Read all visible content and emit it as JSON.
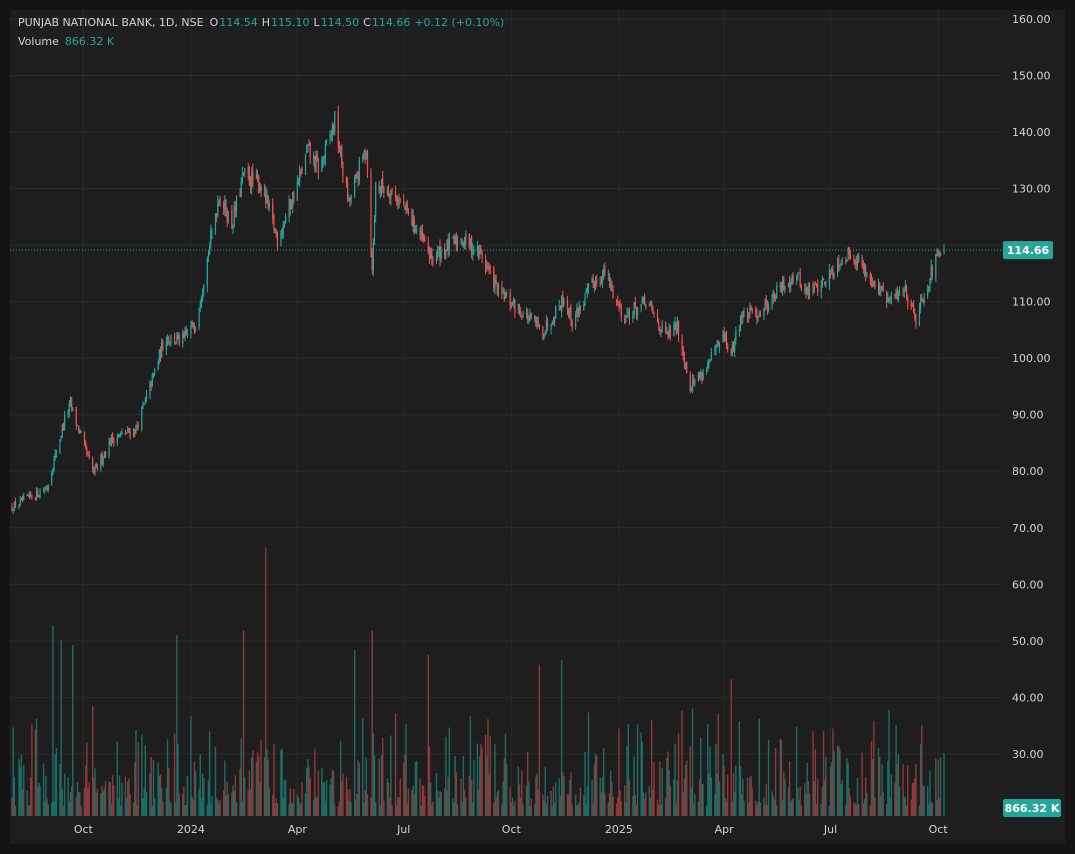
{
  "header": {
    "symbol": "PUNJAB NATIONAL BANK, 1D, NSE",
    "o_label": "O",
    "o_value": "114.54",
    "h_label": "H",
    "h_value": "115.10",
    "l_label": "L",
    "l_value": "114.50",
    "c_label": "C",
    "c_value": "114.66",
    "change": "+0.12 (+0.10%)",
    "volume_label": "Volume",
    "volume_value": "866.32 K"
  },
  "colors": {
    "background": "#141414",
    "pane": "#1e1e1e",
    "grid": "#2a2a2a",
    "up": "#26a69a",
    "down": "#ef5350",
    "volume_up": "#1d6d66",
    "volume_down": "#8c3a3a",
    "axis_text": "#d1d4dc",
    "price_label_bg": "#26a69a"
  },
  "chart_data": {
    "type": "candlestick",
    "title": "PUNJAB NATIONAL BANK, 1D, NSE",
    "ylim": [
      0,
      162
    ],
    "y_ticks": [
      "160.00",
      "150.00",
      "140.00",
      "130.00",
      "120.00",
      "110.00",
      "100.00",
      "90.00",
      "80.00",
      "70.00",
      "60.00",
      "50.00",
      "40.00",
      "30.00"
    ],
    "x_ticks": [
      {
        "label": "Oct",
        "date": "2023-10-01"
      },
      {
        "label": "2024",
        "date": "2024-01-01"
      },
      {
        "label": "Apr",
        "date": "2024-04-01"
      },
      {
        "label": "Jul",
        "date": "2024-07-01"
      },
      {
        "label": "Oct",
        "date": "2024-10-01"
      },
      {
        "label": "2025",
        "date": "2025-01-01"
      },
      {
        "label": "Apr",
        "date": "2025-04-01"
      },
      {
        "label": "Jul",
        "date": "2025-07-01"
      },
      {
        "label": "Oct",
        "date": "2025-10-01"
      }
    ],
    "x_range": [
      "2023-08-01",
      "2025-10-06"
    ],
    "last_price": 114.66,
    "last_price_label": "114.66",
    "last_volume_label": "866.32 K",
    "price_path": [
      [
        "2023-08-01",
        62
      ],
      [
        "2023-08-31",
        66
      ],
      [
        "2023-09-15",
        80
      ],
      [
        "2023-09-20",
        83
      ],
      [
        "2023-10-05",
        72
      ],
      [
        "2023-10-10",
        69
      ],
      [
        "2023-10-25",
        76
      ],
      [
        "2023-11-15",
        78
      ],
      [
        "2023-11-25",
        85
      ],
      [
        "2023-12-10",
        97
      ],
      [
        "2023-12-25",
        96
      ],
      [
        "2024-01-05",
        100
      ],
      [
        "2024-01-25",
        126
      ],
      [
        "2024-02-05",
        120
      ],
      [
        "2024-02-15",
        130
      ],
      [
        "2024-03-01",
        128
      ],
      [
        "2024-03-15",
        117
      ],
      [
        "2024-04-01",
        128
      ],
      [
        "2024-04-10",
        135
      ],
      [
        "2024-04-20",
        131
      ],
      [
        "2024-05-03",
        141
      ],
      [
        "2024-05-15",
        124
      ],
      [
        "2024-05-30",
        136
      ],
      [
        "2024-06-04",
        110
      ],
      [
        "2024-06-07",
        128
      ],
      [
        "2024-06-20",
        127
      ],
      [
        "2024-07-05",
        122
      ],
      [
        "2024-07-25",
        113
      ],
      [
        "2024-08-05",
        115
      ],
      [
        "2024-08-20",
        117
      ],
      [
        "2024-09-05",
        114
      ],
      [
        "2024-09-20",
        106
      ],
      [
        "2024-10-10",
        102
      ],
      [
        "2024-10-28",
        98
      ],
      [
        "2024-11-15",
        105
      ],
      [
        "2024-11-22",
        100
      ],
      [
        "2024-12-10",
        108
      ],
      [
        "2024-12-20",
        110
      ],
      [
        "2025-01-05",
        101
      ],
      [
        "2025-01-25",
        104
      ],
      [
        "2025-02-10",
        97
      ],
      [
        "2025-02-20",
        99
      ],
      [
        "2025-03-03",
        87
      ],
      [
        "2025-03-15",
        90
      ],
      [
        "2025-04-01",
        97
      ],
      [
        "2025-04-07",
        93
      ],
      [
        "2025-04-15",
        101
      ],
      [
        "2025-05-01",
        102
      ],
      [
        "2025-05-20",
        107
      ],
      [
        "2025-06-01",
        110
      ],
      [
        "2025-06-10",
        106
      ],
      [
        "2025-06-25",
        108
      ],
      [
        "2025-07-10",
        113
      ],
      [
        "2025-07-20",
        114
      ],
      [
        "2025-08-01",
        110
      ],
      [
        "2025-08-20",
        104
      ],
      [
        "2025-09-02",
        107
      ],
      [
        "2025-09-12",
        101
      ],
      [
        "2025-09-25",
        110
      ],
      [
        "2025-10-03",
        114.66
      ]
    ],
    "volume_spikes": [
      {
        "date": "2023-09-05",
        "value": 39
      },
      {
        "date": "2023-09-12",
        "value": 36
      },
      {
        "date": "2023-09-22",
        "value": 35
      },
      {
        "date": "2023-12-20",
        "value": 37
      },
      {
        "date": "2024-02-15",
        "value": 38
      },
      {
        "date": "2024-03-05",
        "value": 55
      },
      {
        "date": "2024-05-20",
        "value": 34
      },
      {
        "date": "2024-06-04",
        "value": 38
      },
      {
        "date": "2024-07-22",
        "value": 33
      },
      {
        "date": "2024-10-25",
        "value": 31
      },
      {
        "date": "2024-11-13",
        "value": 32
      },
      {
        "date": "2025-04-07",
        "value": 28
      }
    ]
  }
}
